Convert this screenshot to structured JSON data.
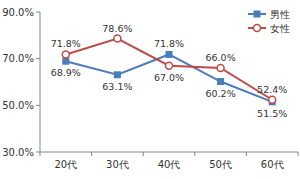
{
  "chart_data": {
    "type": "line",
    "categories": [
      "20代",
      "30代",
      "40代",
      "50代",
      "60代"
    ],
    "series": [
      {
        "name": "男性",
        "color": "#4a7ebb",
        "marker": "square",
        "values": [
          68.9,
          63.1,
          71.8,
          60.2,
          51.5
        ],
        "value_labels": [
          "68.9%",
          "63.1%",
          "71.8%",
          "60.2%",
          "51.5%"
        ]
      },
      {
        "name": "女性",
        "color": "#be4b48",
        "marker": "circle",
        "values": [
          71.8,
          78.6,
          67.0,
          66.0,
          52.4
        ],
        "value_labels": [
          "71.8%",
          "78.6%",
          "67.0%",
          "66.0%",
          "52.4%"
        ]
      }
    ],
    "ylim": [
      30,
      90
    ],
    "yticks": [
      {
        "value": 30,
        "label": "30.0%"
      },
      {
        "value": 50,
        "label": "50.0%"
      },
      {
        "value": 70,
        "label": "70.0%"
      },
      {
        "value": 90,
        "label": "90.0%"
      }
    ],
    "grid": false,
    "legend": "upper right",
    "data_labels": true
  }
}
